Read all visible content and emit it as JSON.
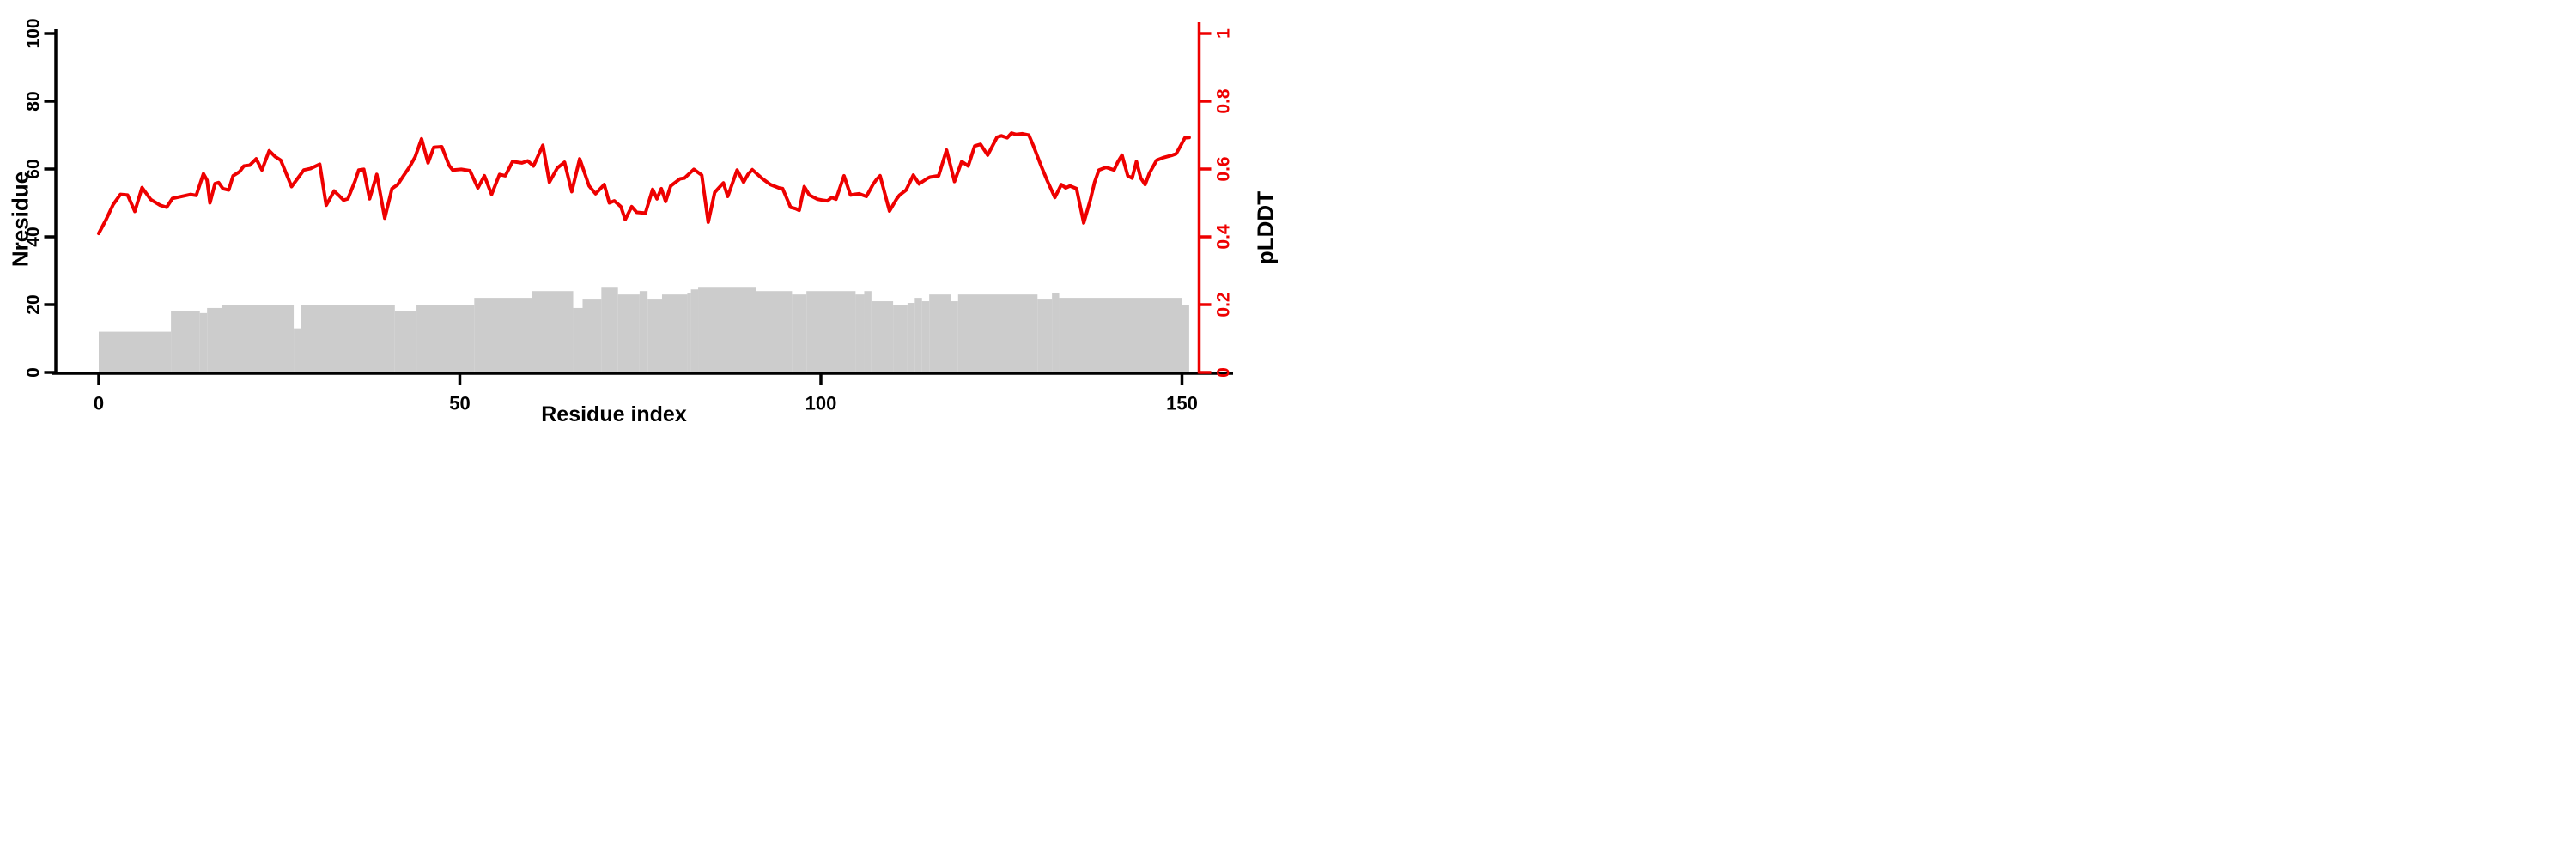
{
  "figure": {
    "xlabel": "Residue index",
    "ylabel_left": "Nresidue",
    "ylabel_right": "pLDDT",
    "background": "#ffffff",
    "axis_color": "#000000",
    "right_axis_color": "#ee0000",
    "bar_color": "#cccccc",
    "line_color": "#ee0000"
  },
  "chart_data": {
    "type": "combo-bar-line-dual-axis",
    "title": "",
    "xlabel": "Residue index",
    "x_axis": {
      "range_drawn": [
        0,
        157
      ],
      "ticks": [
        0,
        50,
        100,
        150
      ]
    },
    "y_left": {
      "label": "Nresidue",
      "range": [
        0,
        100
      ],
      "ticks": [
        0,
        20,
        40,
        60,
        80,
        100
      ],
      "color": "#000000"
    },
    "y_right": {
      "label": "pLDDT",
      "range": [
        0,
        1
      ],
      "ticks": [
        0,
        0.2,
        0.4,
        0.6,
        0.8,
        1
      ],
      "color": "#ee0000"
    },
    "grid": false,
    "legend": "none",
    "bars": {
      "name": "Nresidue histogram",
      "axis": "left",
      "color": "#cccccc",
      "segments": [
        [
          0,
          10,
          12
        ],
        [
          10,
          14,
          18
        ],
        [
          14,
          15,
          17.5
        ],
        [
          15,
          17,
          19
        ],
        [
          17,
          27,
          20
        ],
        [
          27,
          28,
          13
        ],
        [
          28,
          41,
          20
        ],
        [
          41,
          44,
          18
        ],
        [
          44,
          52,
          20
        ],
        [
          52,
          60,
          22
        ],
        [
          60,
          65.7,
          24
        ],
        [
          65.7,
          67,
          19
        ],
        [
          67,
          69.6,
          21.5
        ],
        [
          69.6,
          71.9,
          25
        ],
        [
          71.9,
          74.9,
          23
        ],
        [
          74.9,
          76,
          24
        ],
        [
          76,
          78,
          21.5
        ],
        [
          78,
          81.5,
          23
        ],
        [
          81.5,
          82,
          23.5
        ],
        [
          82,
          83,
          24.5
        ],
        [
          83,
          91,
          25
        ],
        [
          91,
          96,
          24
        ],
        [
          96,
          98,
          23
        ],
        [
          98,
          104.8,
          24
        ],
        [
          104.8,
          106,
          23
        ],
        [
          106,
          107,
          24
        ],
        [
          107,
          110,
          21
        ],
        [
          110,
          112,
          20
        ],
        [
          112,
          113,
          20.5
        ],
        [
          113,
          114,
          22
        ],
        [
          114,
          115,
          21
        ],
        [
          115,
          118,
          23
        ],
        [
          118,
          119,
          21
        ],
        [
          119,
          130,
          23
        ],
        [
          130,
          132,
          21.5
        ],
        [
          132,
          133,
          23.5
        ],
        [
          133,
          150,
          22
        ],
        [
          150,
          151,
          20
        ]
      ]
    },
    "line": {
      "name": "pLDDT per residue",
      "axis": "right",
      "color": "#ee0000",
      "points": [
        [
          0,
          0.41
        ],
        [
          1,
          0.45
        ],
        [
          2,
          0.495
        ],
        [
          3,
          0.525
        ],
        [
          4,
          0.523
        ],
        [
          5,
          0.475
        ],
        [
          6,
          0.545
        ],
        [
          7.2,
          0.51
        ],
        [
          8.5,
          0.493
        ],
        [
          9.4,
          0.487
        ],
        [
          10.2,
          0.513
        ],
        [
          11.7,
          0.52
        ],
        [
          12.7,
          0.525
        ],
        [
          13.5,
          0.522
        ],
        [
          14.5,
          0.586
        ],
        [
          15,
          0.567
        ],
        [
          15.4,
          0.5
        ],
        [
          16.1,
          0.557
        ],
        [
          16.6,
          0.56
        ],
        [
          17.2,
          0.542
        ],
        [
          18,
          0.538
        ],
        [
          18.6,
          0.58
        ],
        [
          19.5,
          0.592
        ],
        [
          20.1,
          0.609
        ],
        [
          20.9,
          0.611
        ],
        [
          21.8,
          0.63
        ],
        [
          22.6,
          0.597
        ],
        [
          23.6,
          0.654
        ],
        [
          24.4,
          0.637
        ],
        [
          25.2,
          0.626
        ],
        [
          26.7,
          0.548
        ],
        [
          28.4,
          0.597
        ],
        [
          29.3,
          0.601
        ],
        [
          30.6,
          0.614
        ],
        [
          31.5,
          0.493
        ],
        [
          32.6,
          0.535
        ],
        [
          33.2,
          0.523
        ],
        [
          33.9,
          0.508
        ],
        [
          34.5,
          0.512
        ],
        [
          35.5,
          0.565
        ],
        [
          36,
          0.597
        ],
        [
          36.7,
          0.599
        ],
        [
          37.5,
          0.512
        ],
        [
          38.5,
          0.584
        ],
        [
          39.6,
          0.455
        ],
        [
          40.6,
          0.542
        ],
        [
          41.4,
          0.554
        ],
        [
          42.2,
          0.58
        ],
        [
          43,
          0.605
        ],
        [
          43.8,
          0.635
        ],
        [
          44.7,
          0.689
        ],
        [
          45.6,
          0.618
        ],
        [
          46.4,
          0.664
        ],
        [
          47.5,
          0.666
        ],
        [
          48.5,
          0.611
        ],
        [
          49,
          0.597
        ],
        [
          50.2,
          0.599
        ],
        [
          51.4,
          0.595
        ],
        [
          52.5,
          0.544
        ],
        [
          53.4,
          0.58
        ],
        [
          54.4,
          0.525
        ],
        [
          55.5,
          0.584
        ],
        [
          56.3,
          0.58
        ],
        [
          57.3,
          0.622
        ],
        [
          58.6,
          0.618
        ],
        [
          59.4,
          0.624
        ],
        [
          60.2,
          0.609
        ],
        [
          61.5,
          0.67
        ],
        [
          62.4,
          0.561
        ],
        [
          63.5,
          0.603
        ],
        [
          64.5,
          0.62
        ],
        [
          65.5,
          0.533
        ],
        [
          66.6,
          0.63
        ],
        [
          67.9,
          0.55
        ],
        [
          68.8,
          0.527
        ],
        [
          70,
          0.554
        ],
        [
          70.7,
          0.5
        ],
        [
          71.4,
          0.506
        ],
        [
          72.3,
          0.489
        ],
        [
          72.9,
          0.451
        ],
        [
          73.8,
          0.489
        ],
        [
          74.5,
          0.472
        ],
        [
          75.7,
          0.47
        ],
        [
          76.7,
          0.54
        ],
        [
          77.3,
          0.512
        ],
        [
          77.9,
          0.542
        ],
        [
          78.5,
          0.504
        ],
        [
          79.2,
          0.55
        ],
        [
          80.5,
          0.571
        ],
        [
          81.1,
          0.573
        ],
        [
          82.4,
          0.599
        ],
        [
          83.5,
          0.582
        ],
        [
          84.4,
          0.443
        ],
        [
          85.3,
          0.531
        ],
        [
          86.5,
          0.559
        ],
        [
          87.1,
          0.519
        ],
        [
          88.4,
          0.597
        ],
        [
          89.3,
          0.561
        ],
        [
          89.9,
          0.584
        ],
        [
          90.5,
          0.598
        ],
        [
          91.8,
          0.573
        ],
        [
          93,
          0.554
        ],
        [
          94.2,
          0.544
        ],
        [
          94.7,
          0.542
        ],
        [
          95.8,
          0.487
        ],
        [
          96.5,
          0.483
        ],
        [
          97,
          0.478
        ],
        [
          97.7,
          0.548
        ],
        [
          98.4,
          0.523
        ],
        [
          99.5,
          0.511
        ],
        [
          100.2,
          0.508
        ],
        [
          100.9,
          0.506
        ],
        [
          101.5,
          0.516
        ],
        [
          102.1,
          0.511
        ],
        [
          103.2,
          0.58
        ],
        [
          104.1,
          0.523
        ],
        [
          104.6,
          0.525
        ],
        [
          105.3,
          0.527
        ],
        [
          106.3,
          0.519
        ],
        [
          107.2,
          0.554
        ],
        [
          107.7,
          0.569
        ],
        [
          108.2,
          0.58
        ],
        [
          109.5,
          0.476
        ],
        [
          110.5,
          0.512
        ],
        [
          110.9,
          0.523
        ],
        [
          111.8,
          0.538
        ],
        [
          112.8,
          0.582
        ],
        [
          113.6,
          0.556
        ],
        [
          114.8,
          0.573
        ],
        [
          115.1,
          0.576
        ],
        [
          116.3,
          0.58
        ],
        [
          117.4,
          0.656
        ],
        [
          118.5,
          0.563
        ],
        [
          119.5,
          0.622
        ],
        [
          120.4,
          0.609
        ],
        [
          121.3,
          0.668
        ],
        [
          122.1,
          0.673
        ],
        [
          123.1,
          0.641
        ],
        [
          124.4,
          0.694
        ],
        [
          125,
          0.698
        ],
        [
          125.8,
          0.692
        ],
        [
          126.4,
          0.706
        ],
        [
          127,
          0.702
        ],
        [
          127.9,
          0.704
        ],
        [
          128.8,
          0.7
        ],
        [
          129.4,
          0.67
        ],
        [
          130.5,
          0.609
        ],
        [
          131.4,
          0.563
        ],
        [
          132.4,
          0.516
        ],
        [
          133.3,
          0.554
        ],
        [
          133.9,
          0.544
        ],
        [
          134.5,
          0.55
        ],
        [
          135.4,
          0.542
        ],
        [
          136.4,
          0.441
        ],
        [
          137.3,
          0.508
        ],
        [
          137.9,
          0.561
        ],
        [
          138.5,
          0.597
        ],
        [
          139.5,
          0.605
        ],
        [
          140.6,
          0.597
        ],
        [
          141.1,
          0.62
        ],
        [
          141.7,
          0.641
        ],
        [
          142.5,
          0.58
        ],
        [
          143.1,
          0.573
        ],
        [
          143.7,
          0.622
        ],
        [
          144.3,
          0.573
        ],
        [
          144.9,
          0.554
        ],
        [
          145.5,
          0.588
        ],
        [
          146.5,
          0.626
        ],
        [
          147.5,
          0.634
        ],
        [
          148.7,
          0.641
        ],
        [
          149.2,
          0.645
        ],
        [
          149.8,
          0.668
        ],
        [
          150.4,
          0.692
        ],
        [
          151,
          0.693
        ]
      ]
    }
  }
}
